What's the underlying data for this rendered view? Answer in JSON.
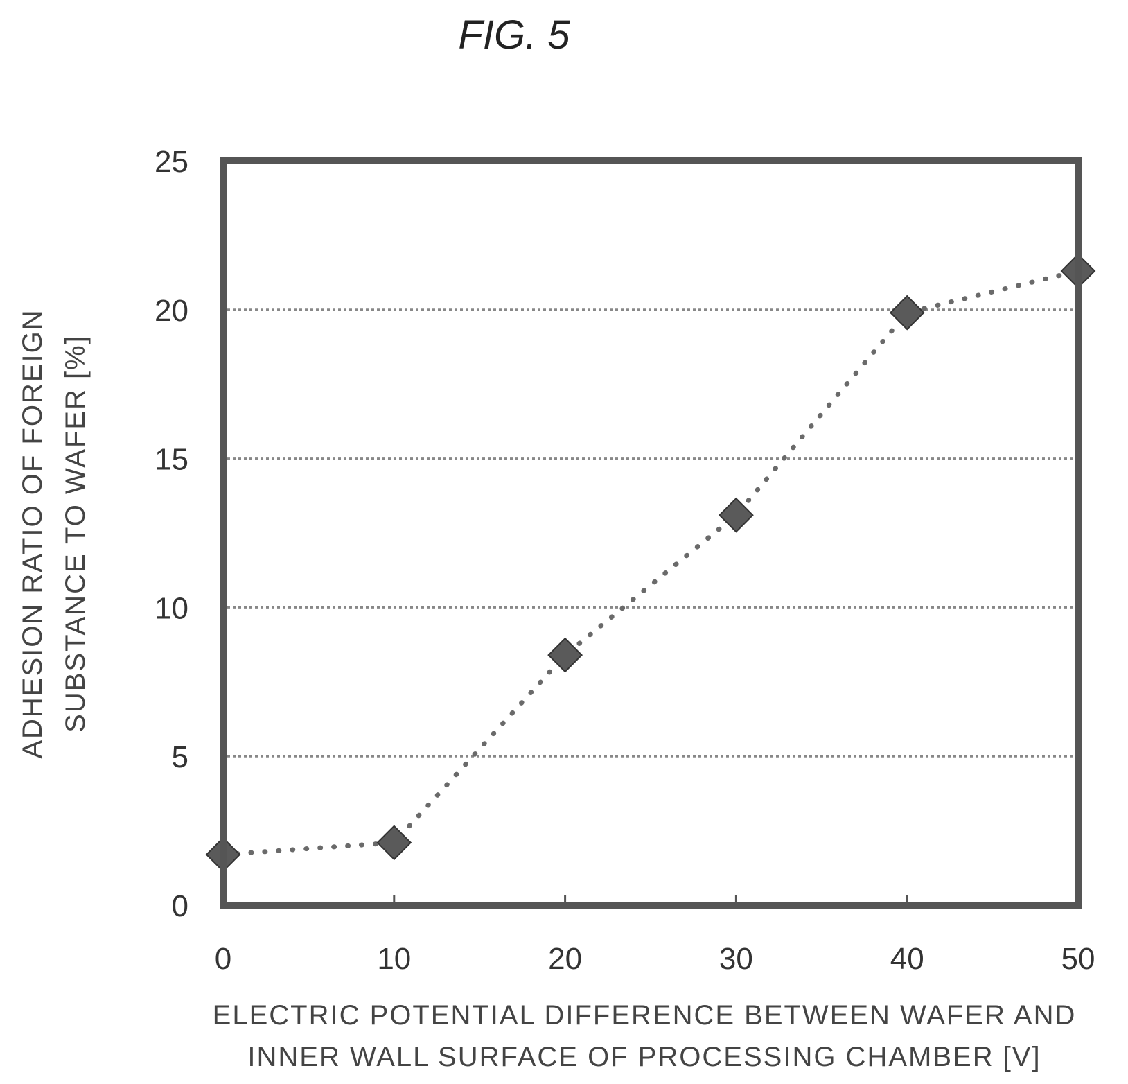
{
  "figure_label": "FIG.  5",
  "chart_data": {
    "type": "line",
    "title": "",
    "x": [
      0,
      10,
      20,
      30,
      40,
      50
    ],
    "series": [
      {
        "values": [
          1.7,
          2.1,
          8.4,
          13.1,
          19.9,
          21.3
        ]
      }
    ],
    "xlim": [
      0,
      50
    ],
    "ylim": [
      0,
      25
    ],
    "xticks": [
      0,
      10,
      20,
      30,
      40,
      50
    ],
    "yticks": [
      0,
      5,
      10,
      15,
      20,
      25
    ],
    "xlabel_lines": [
      "ELECTRIC POTENTIAL DIFFERENCE BETWEEN WAFER AND",
      "INNER WALL SURFACE OF PROCESSING CHAMBER [V]"
    ],
    "ylabel_lines": [
      "ADHESION RATIO OF FOREIGN",
      "SUBSTANCE TO WAFER [%]"
    ],
    "grid": "horizontal dotted",
    "line_style": "dotted",
    "marker": "diamond",
    "legend": "none",
    "colors": {
      "frame": "#555555",
      "marker": "#5a5a5a",
      "line": "#6a6a6a",
      "grid": "#888888"
    }
  }
}
